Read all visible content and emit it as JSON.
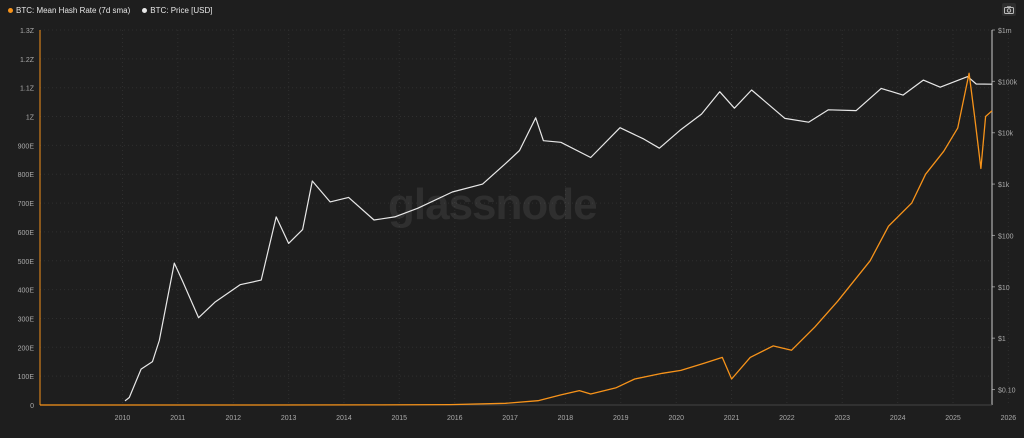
{
  "legend": {
    "hash_rate_label": "BTC: Mean Hash Rate (7d sma)",
    "price_label": "BTC: Price [USD]"
  },
  "icons": {
    "camera": "camera-icon"
  },
  "watermark": "glassnode",
  "colors": {
    "background": "#1e1e1e",
    "hash_rate": "#f7931a",
    "price": "#e8e8e8",
    "grid": "#2f2f2f",
    "axis_text": "#aaaaaa"
  },
  "chart_data": {
    "type": "line",
    "title": "",
    "xlabel": "",
    "x_ticks": [
      "2010",
      "2011",
      "2012",
      "2013",
      "2014",
      "2015",
      "2016",
      "2017",
      "2018",
      "2019",
      "2020",
      "2021",
      "2022",
      "2023",
      "2024",
      "2025",
      "2026"
    ],
    "x_range": [
      "2009-01-03",
      "2026-03-15"
    ],
    "y_left": {
      "label": "",
      "scale": "linear",
      "range": [
        0,
        1.3e+21
      ],
      "tick_labels": [
        "0",
        "100E",
        "200E",
        "300E",
        "400E",
        "500E",
        "600E",
        "700E",
        "800E",
        "900E",
        "1Z",
        "1.1Z",
        "1.2Z",
        "1.3Z"
      ]
    },
    "y_right": {
      "label": "",
      "scale": "log",
      "range": [
        0.05,
        1000000
      ],
      "ticks": [
        0.1,
        1,
        10,
        100,
        1000,
        10000,
        100000,
        1000000
      ],
      "tick_labels": [
        "$0.10",
        "$1",
        "$10",
        "$100",
        "$1k",
        "$10k",
        "$100k",
        "$1m"
      ]
    },
    "grid": true,
    "legend_position": "top-left",
    "series": [
      {
        "name": "BTC: Mean Hash Rate (7d sma)",
        "axis": "left",
        "unit": "E",
        "x": [
          "2009-01-03",
          "2013-01-01",
          "2015-01-01",
          "2016-06-01",
          "2017-06-01",
          "2018-01-01",
          "2018-06-01",
          "2018-10-01",
          "2018-12-15",
          "2019-06-01",
          "2019-10-01",
          "2020-04-01",
          "2020-08-01",
          "2021-01-01",
          "2021-05-01",
          "2021-07-01",
          "2021-11-01",
          "2022-04-01",
          "2022-08-01",
          "2023-01-01",
          "2023-06-01",
          "2024-01-01",
          "2024-05-01",
          "2024-10-01",
          "2025-01-01",
          "2025-05-01",
          "2025-08-01",
          "2025-10-15",
          "2025-11-20",
          "2026-01-01",
          "2026-02-01",
          "2026-03-15"
        ],
        "values": [
          0,
          0,
          0.3,
          1.5,
          6,
          15,
          35,
          50,
          38,
          60,
          90,
          110,
          120,
          145,
          165,
          90,
          165,
          205,
          190,
          270,
          360,
          500,
          620,
          700,
          800,
          880,
          960,
          1150,
          1000,
          820,
          1000,
          1020
        ]
      },
      {
        "name": "BTC: Price [USD]",
        "axis": "right",
        "unit": "USD",
        "x": [
          "2010-07-18",
          "2010-08-15",
          "2010-11-01",
          "2011-01-15",
          "2011-03-01",
          "2011-06-08",
          "2011-08-01",
          "2011-11-15",
          "2012-03-01",
          "2012-08-15",
          "2013-01-01",
          "2013-04-10",
          "2013-07-01",
          "2013-10-01",
          "2013-12-04",
          "2014-04-01",
          "2014-08-01",
          "2015-01-15",
          "2015-06-01",
          "2015-11-01",
          "2016-06-15",
          "2017-01-01",
          "2017-06-01",
          "2017-09-01",
          "2017-12-17",
          "2018-02-06",
          "2018-06-01",
          "2018-12-15",
          "2019-06-26",
          "2019-12-01",
          "2020-03-12",
          "2020-08-01",
          "2020-12-15",
          "2021-04-14",
          "2021-07-20",
          "2021-11-10",
          "2022-06-18",
          "2022-11-21",
          "2023-04-01",
          "2023-10-01",
          "2024-03-14",
          "2024-08-05",
          "2024-12-17",
          "2025-04-07",
          "2025-10-06",
          "2025-12-01",
          "2026-03-15"
        ],
        "values": [
          0.06,
          0.07,
          0.25,
          0.35,
          0.9,
          29,
          13,
          2.5,
          5,
          11,
          13.5,
          230,
          70,
          130,
          1150,
          450,
          550,
          200,
          230,
          340,
          700,
          1000,
          2500,
          4500,
          19500,
          7000,
          6500,
          3300,
          12500,
          7500,
          5000,
          11500,
          23000,
          63000,
          30000,
          68000,
          19000,
          16000,
          28000,
          27000,
          73000,
          54000,
          106000,
          77000,
          124000,
          89000,
          88000
        ]
      }
    ]
  }
}
